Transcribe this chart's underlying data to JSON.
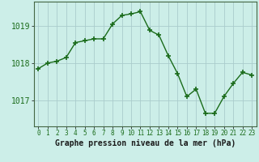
{
  "x": [
    0,
    1,
    2,
    3,
    4,
    5,
    6,
    7,
    8,
    9,
    10,
    11,
    12,
    13,
    14,
    15,
    16,
    17,
    18,
    19,
    20,
    21,
    22,
    23
  ],
  "y": [
    1017.85,
    1018.0,
    1018.05,
    1018.15,
    1018.55,
    1018.6,
    1018.65,
    1018.65,
    1019.05,
    1019.28,
    1019.32,
    1019.38,
    1018.88,
    1018.75,
    1018.2,
    1017.72,
    1017.1,
    1017.3,
    1016.65,
    1016.65,
    1017.1,
    1017.45,
    1017.75,
    1017.68
  ],
  "line_color": "#1a6b1a",
  "marker": "+",
  "marker_size": 4,
  "marker_lw": 1.2,
  "bg_color": "#cceee8",
  "grid_color": "#aacccc",
  "xlabel": "Graphe pression niveau de la mer (hPa)",
  "xlabel_fontsize": 7,
  "ytick_labels": [
    "1017",
    "1018",
    "1019"
  ],
  "yticks": [
    1017,
    1018,
    1019
  ],
  "xticks": [
    0,
    1,
    2,
    3,
    4,
    5,
    6,
    7,
    8,
    9,
    10,
    11,
    12,
    13,
    14,
    15,
    16,
    17,
    18,
    19,
    20,
    21,
    22,
    23
  ],
  "ylim": [
    1016.3,
    1019.65
  ],
  "xlim": [
    -0.5,
    23.5
  ],
  "ytick_fontsize": 7,
  "xtick_fontsize": 5.5,
  "line_width": 1.0
}
